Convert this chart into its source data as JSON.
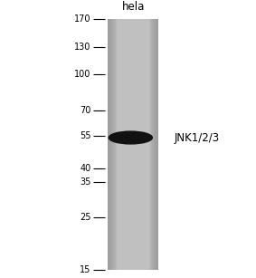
{
  "outer_bg": "#ffffff",
  "lane_color": "#c0c0c0",
  "lane_label": "hela",
  "lane_label_fontsize": 8.5,
  "mw_markers": [
    170,
    130,
    100,
    70,
    55,
    40,
    35,
    25,
    15
  ],
  "band_mw": 54,
  "band_label": "JNK1/2/3",
  "band_color": "#111111",
  "marker_fontsize": 7.0,
  "band_label_fontsize": 8.5,
  "fig_width": 2.83,
  "fig_height": 3.07,
  "dpi": 100
}
